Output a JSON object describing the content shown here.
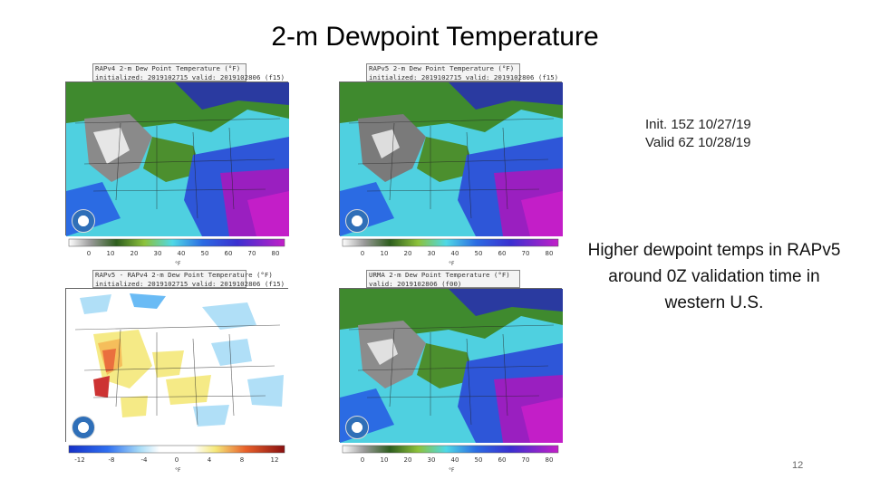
{
  "slide": {
    "title": "2-m Dewpoint Temperature",
    "init_line1": "Init. 15Z 10/27/19",
    "init_line2": "Valid 6Z 10/28/19",
    "description": "Higher dewpoint temps in RAPv5 around 0Z validation time in western U.S.",
    "page_number": "12"
  },
  "panels": [
    {
      "id": "rapv4",
      "header_line1": "RAPv4 2-m Dew Point Temperature (°F)",
      "header_line2": "initialized: 2019102715 valid: 2019102806 (f15)",
      "type": "dewpoint",
      "ticks": [
        "0",
        "10",
        "20",
        "30",
        "40",
        "50",
        "60",
        "70",
        "80"
      ],
      "unit": "°F"
    },
    {
      "id": "rapv5",
      "header_line1": "RAPv5 2-m Dew Point Temperature (°F)",
      "header_line2": "initialized: 2019102715 valid: 2019102806 (f15)",
      "type": "dewpoint",
      "ticks": [
        "0",
        "10",
        "20",
        "30",
        "40",
        "50",
        "60",
        "70",
        "80"
      ],
      "unit": "°F"
    },
    {
      "id": "diff",
      "header_line1": "RAPv5 - RAPv4 2-m Dew Point Temperature (°F)",
      "header_line2": "initialized: 2019102715 valid: 2019102806 (f15)",
      "type": "diff",
      "ticks": [
        "-12",
        "-8",
        "-4",
        "0",
        "4",
        "8",
        "12"
      ],
      "unit": "°F"
    },
    {
      "id": "urma",
      "header_line1": "URMA 2-m Dew Point Temperature (°F)",
      "header_line2": "valid: 2019102806 (f00)",
      "type": "dewpoint",
      "ticks": [
        "0",
        "10",
        "20",
        "30",
        "40",
        "50",
        "60",
        "70",
        "80"
      ],
      "unit": "°F"
    }
  ],
  "colors": {
    "dewpoint_scale": [
      "#ffffff",
      "#bdbdbd",
      "#7a7a7a",
      "#2e5e1e",
      "#4c8f2e",
      "#8dc23b",
      "#4fd9e6",
      "#39b3f0",
      "#2b6be3",
      "#3a2fd0",
      "#6a22c8",
      "#9b1fc0",
      "#c31ec8"
    ],
    "diff_scale": [
      "#1530c8",
      "#2f6ff0",
      "#5ab4f5",
      "#a8dcf7",
      "#ffffff",
      "#ffffff",
      "#f5e87a",
      "#f5b84a",
      "#e8602a",
      "#c81e1e",
      "#8a1010"
    ]
  }
}
